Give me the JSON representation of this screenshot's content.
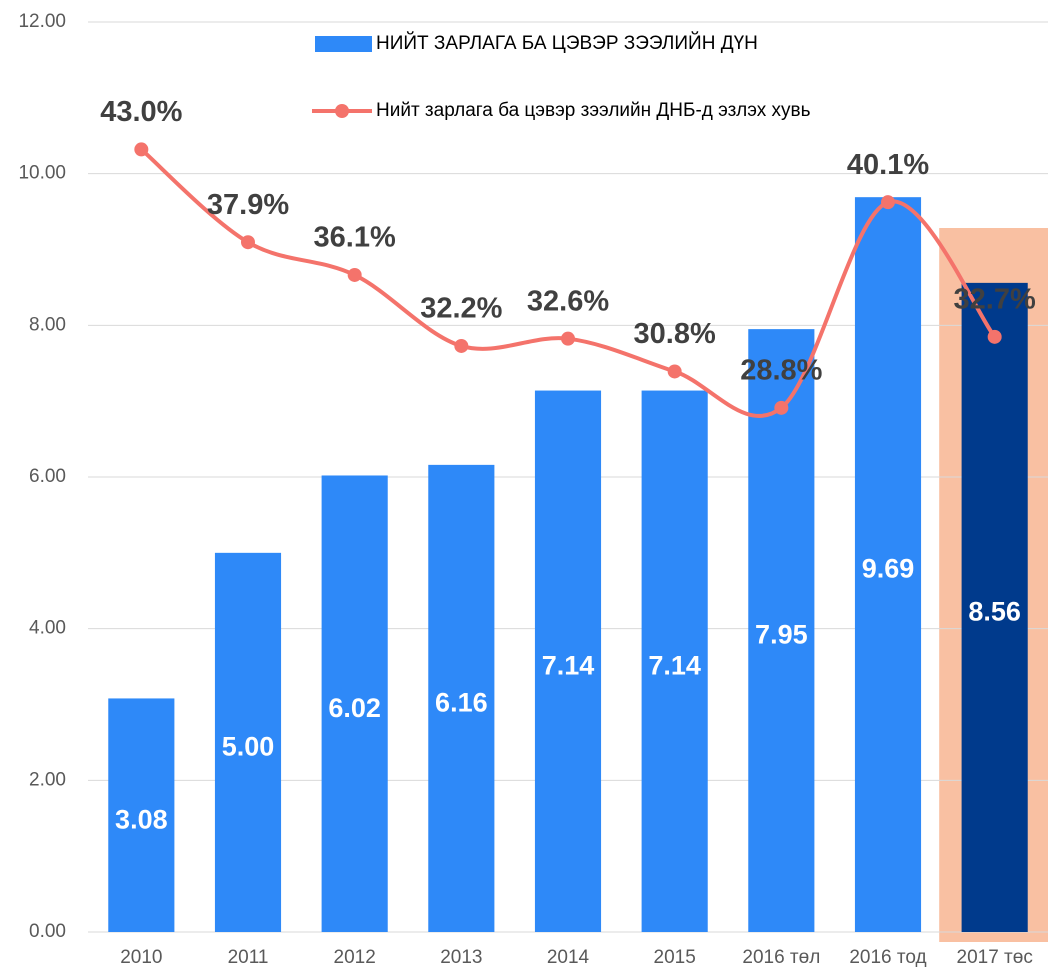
{
  "chart_data": {
    "type": "bar",
    "categories": [
      "2010",
      "2011",
      "2012",
      "2013",
      "2014",
      "2015",
      "2016 төл",
      "2016 тод",
      "2017 төс"
    ],
    "series": [
      {
        "name": "НИЙТ ЗАРЛАГА БА ЦЭВЭР ЗЭЭЛИЙН ДҮН",
        "type": "bar",
        "color": "#2e89f8",
        "colors": [
          "#2e89f8",
          "#2e89f8",
          "#2e89f8",
          "#2e89f8",
          "#2e89f8",
          "#2e89f8",
          "#2e89f8",
          "#2e89f8",
          "#003a8c"
        ],
        "values": [
          3.08,
          5.0,
          6.02,
          6.16,
          7.14,
          7.14,
          7.95,
          9.69,
          8.56
        ],
        "value_labels": [
          "3.08",
          "5.00",
          "6.02",
          "6.16",
          "7.14",
          "7.14",
          "7.95",
          "9.69",
          "8.56"
        ]
      },
      {
        "name": "Нийт зарлага ба цэвэр зээлийн ДНБ-д эзлэх хувь",
        "type": "line",
        "color": "#f4736b",
        "axis": "y2",
        "values": [
          43.0,
          37.9,
          36.1,
          32.2,
          32.6,
          30.8,
          28.8,
          40.1,
          32.7
        ],
        "value_labels": [
          "43.0%",
          "37.9%",
          "36.1%",
          "32.2%",
          "32.6%",
          "30.8%",
          "28.8%",
          "40.1%",
          "32.7%"
        ]
      }
    ],
    "ylim": [
      0,
      12
    ],
    "yticks": [
      {
        "value": 0,
        "label": "0.00"
      },
      {
        "value": 2,
        "label": "2.00"
      },
      {
        "value": 4,
        "label": "4.00"
      },
      {
        "value": 6,
        "label": "6.00"
      },
      {
        "value": 8,
        "label": "8.00"
      },
      {
        "value": 10,
        "label": "10.00"
      },
      {
        "value": 12,
        "label": "12.00"
      }
    ],
    "y2lim": [
      0,
      50
    ],
    "grid": true,
    "legend": "top",
    "highlight": {
      "category": 8,
      "color": "#f9c0a2"
    }
  }
}
